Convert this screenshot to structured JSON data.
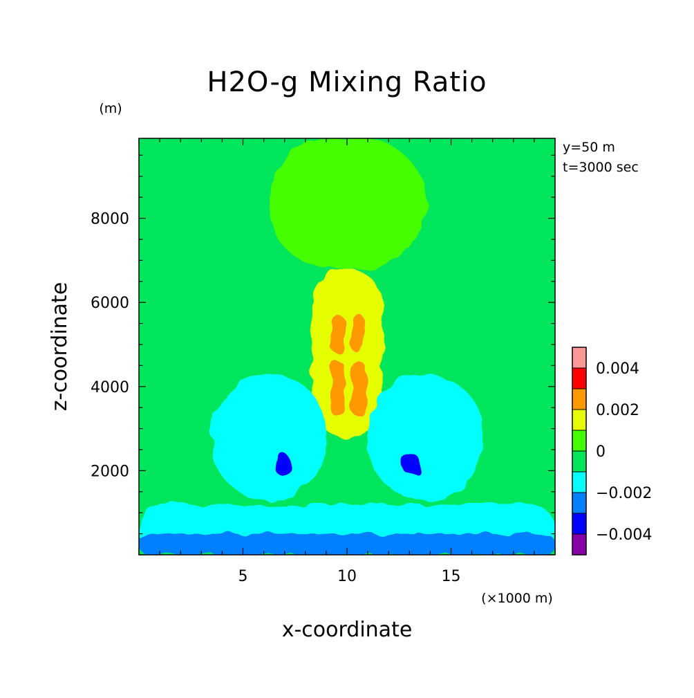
{
  "chart_data": {
    "type": "heatmap",
    "title": "H2O-g Mixing Ratio",
    "xlabel": "x-coordinate",
    "ylabel": "z-coordinate",
    "x_unit": "(×1000 m)",
    "y_unit": "(m)",
    "xlim": [
      0,
      20
    ],
    "ylim": [
      0,
      9900
    ],
    "x_ticks": [
      {
        "value": 5,
        "label": "5"
      },
      {
        "value": 10,
        "label": "10"
      },
      {
        "value": 15,
        "label": "15"
      }
    ],
    "y_ticks": [
      {
        "value": 2000,
        "label": "2000"
      },
      {
        "value": 4000,
        "label": "4000"
      },
      {
        "value": 6000,
        "label": "6000"
      },
      {
        "value": 8000,
        "label": "8000"
      }
    ],
    "annotations": [
      "y=50 m",
      "t=3000 sec"
    ],
    "colorbar": {
      "levels": [
        {
          "range": [
            -0.005,
            -0.004
          ],
          "color": "#8800aa"
        },
        {
          "range": [
            -0.004,
            -0.003
          ],
          "color": "#0000ff"
        },
        {
          "range": [
            -0.003,
            -0.002
          ],
          "color": "#0080ff"
        },
        {
          "range": [
            -0.002,
            -0.001
          ],
          "color": "#00ffff"
        },
        {
          "range": [
            -0.001,
            0.0
          ],
          "color": "#00e65c"
        },
        {
          "range": [
            0.0,
            0.001
          ],
          "color": "#44ff00"
        },
        {
          "range": [
            0.001,
            0.002
          ],
          "color": "#e6ff00"
        },
        {
          "range": [
            0.002,
            0.003
          ],
          "color": "#ff9900"
        },
        {
          "range": [
            0.003,
            0.004
          ],
          "color": "#ff0000"
        },
        {
          "range": [
            0.004,
            0.005
          ],
          "color": "#ff9999"
        }
      ],
      "tick_labels": [
        {
          "value": -0.004,
          "label": "−0.004"
        },
        {
          "value": -0.002,
          "label": "−0.002"
        },
        {
          "value": 0,
          "label": "0"
        },
        {
          "value": 0.002,
          "label": "0.002"
        },
        {
          "value": 0.004,
          "label": "0.004"
        }
      ]
    },
    "field": {
      "background_level": -0.0005,
      "features": [
        {
          "name": "upper-plume",
          "x": [
            6.2,
            13.8
          ],
          "z": [
            6800,
            9900
          ],
          "value": 0.0005
        },
        {
          "name": "central-column",
          "x": [
            8.3,
            11.7
          ],
          "z": [
            2800,
            6800
          ],
          "value": 0.0015
        },
        {
          "name": "core-upper-left",
          "x": [
            9.2,
            9.9
          ],
          "z": [
            4800,
            5700
          ],
          "value": 0.0025
        },
        {
          "name": "core-upper-right",
          "x": [
            10.2,
            10.9
          ],
          "z": [
            4800,
            5700
          ],
          "value": 0.0025
        },
        {
          "name": "core-lower-left",
          "x": [
            9.2,
            9.9
          ],
          "z": [
            3300,
            4600
          ],
          "value": 0.0025
        },
        {
          "name": "core-lower-right",
          "x": [
            10.2,
            10.9
          ],
          "z": [
            3300,
            4600
          ],
          "value": 0.0025
        },
        {
          "name": "cool-lobe-left",
          "x": [
            3.5,
            9.0
          ],
          "z": [
            1300,
            4300
          ],
          "value": -0.0015
        },
        {
          "name": "cool-lobe-right",
          "x": [
            11.0,
            16.5
          ],
          "z": [
            1300,
            4300
          ],
          "value": -0.0015
        },
        {
          "name": "cold-core-left",
          "x": [
            6.5,
            7.3
          ],
          "z": [
            1900,
            2400
          ],
          "value": -0.0035
        },
        {
          "name": "cold-core-right",
          "x": [
            12.7,
            13.5
          ],
          "z": [
            1900,
            2400
          ],
          "value": -0.0035
        },
        {
          "name": "near-surface-band",
          "x": [
            0,
            20
          ],
          "z": [
            0,
            1200
          ],
          "value": -0.0015
        },
        {
          "name": "surface-layer",
          "x": [
            0,
            20
          ],
          "z": [
            0,
            500
          ],
          "value": -0.0025
        }
      ]
    }
  }
}
